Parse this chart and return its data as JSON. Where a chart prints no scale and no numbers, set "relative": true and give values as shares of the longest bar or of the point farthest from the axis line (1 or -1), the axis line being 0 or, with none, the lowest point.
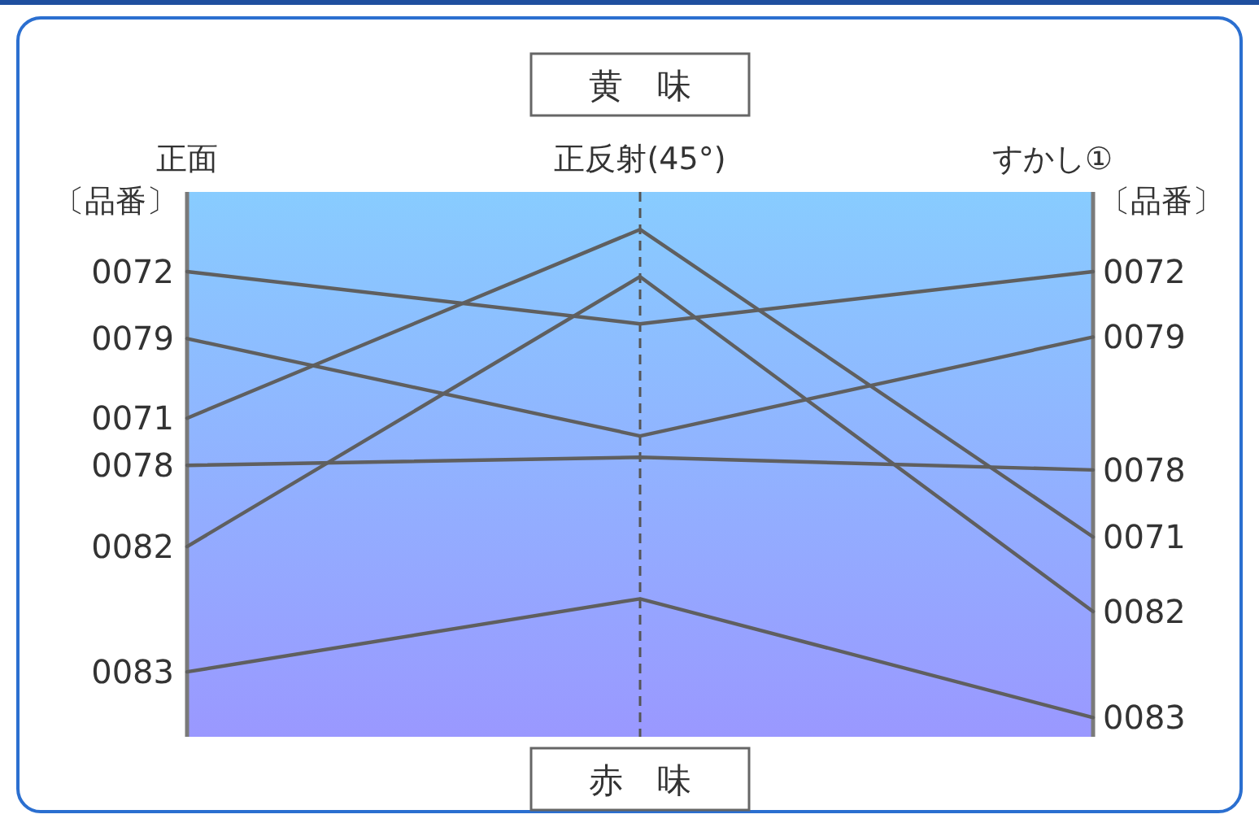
{
  "chart_data": {
    "type": "line",
    "relative": true,
    "categories": [
      "正面",
      "正反射(45°)",
      "すかし①"
    ],
    "annotations": [
      "〔品番〕",
      "〔品番〕",
      "黄　味",
      "赤　味"
    ],
    "series": [
      {
        "name": "0072",
        "color": "#5f5f5f",
        "values": [
          0.917,
          0.814,
          0.917
        ]
      },
      {
        "name": "0079",
        "color": "#5f5f5f",
        "values": [
          0.785,
          0.593,
          0.788
        ]
      },
      {
        "name": "0071",
        "color": "#5f5f5f",
        "values": [
          0.628,
          1,
          0.394
        ]
      },
      {
        "name": "0078",
        "color": "#5f5f5f",
        "values": [
          0.535,
          0.551,
          0.526
        ]
      },
      {
        "name": "0082",
        "color": "#5f5f5f",
        "values": [
          0.375,
          0.907,
          0.247
        ]
      },
      {
        "name": "0083",
        "color": "#5f5f5f",
        "values": [
          0.128,
          0.272,
          0.038
        ]
      }
    ]
  }
}
